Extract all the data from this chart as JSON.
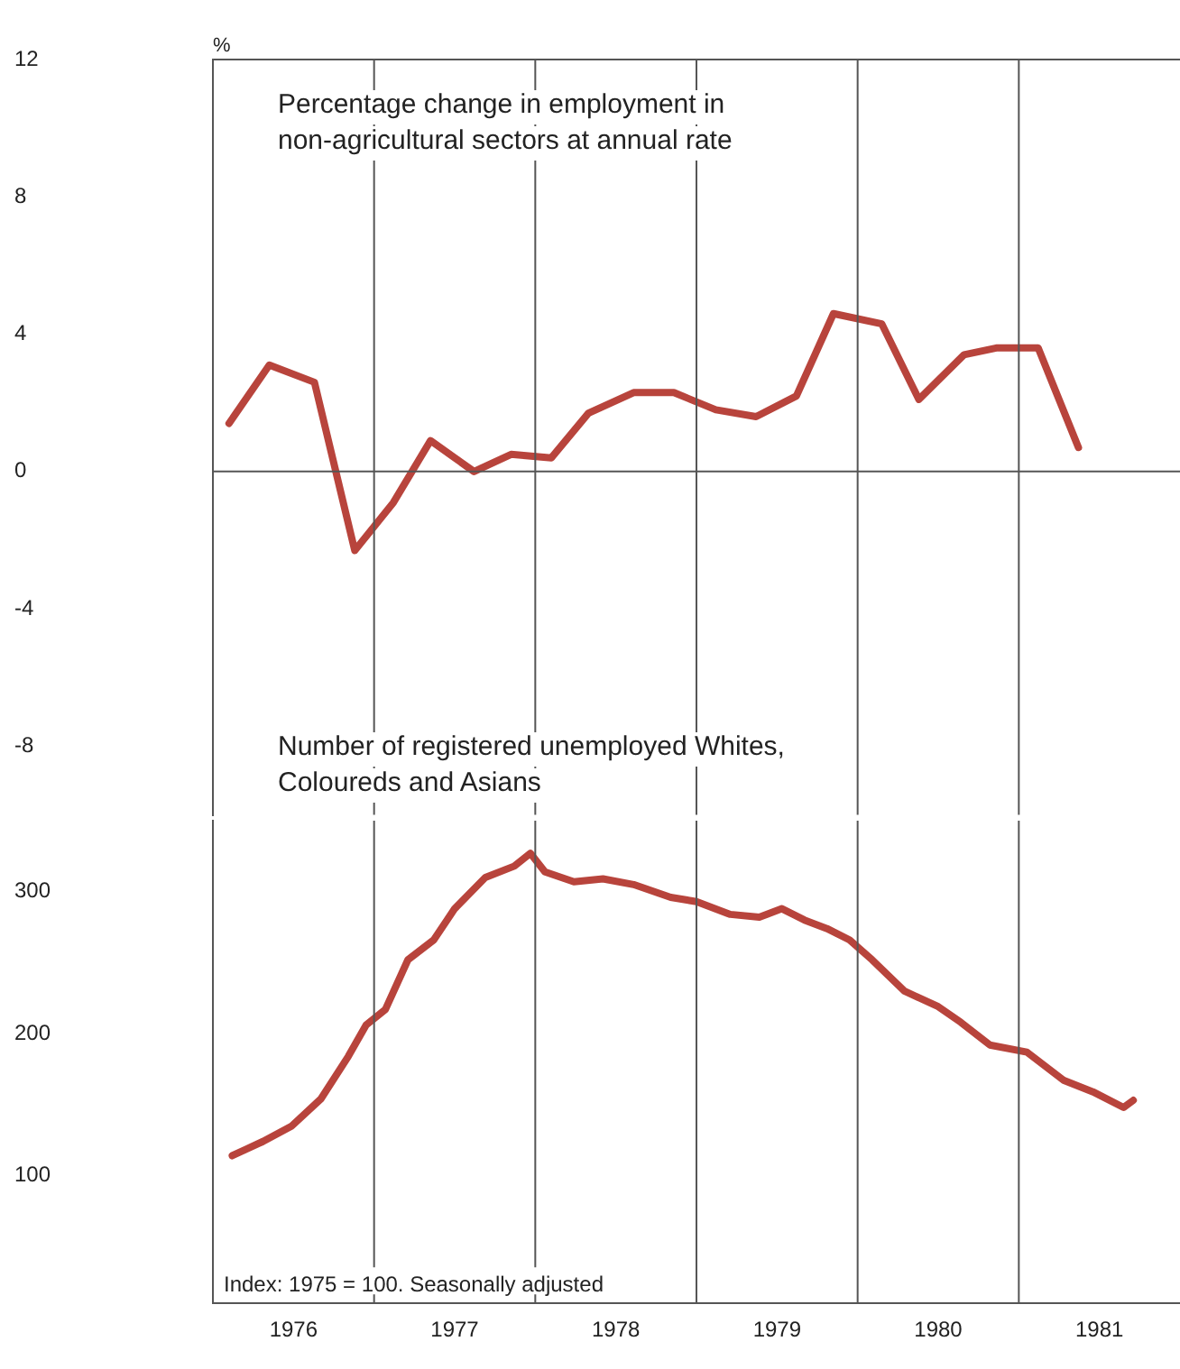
{
  "chart_data": [
    {
      "type": "line",
      "title": "Percentage change in employment in non-agricultural sectors at annual rate",
      "ylabel": "%",
      "color": "#b8443c",
      "x": [
        1976.1,
        1976.35,
        1976.63,
        1976.88,
        1977.12,
        1977.35,
        1977.62,
        1977.85,
        1978.1,
        1978.33,
        1978.61,
        1978.86,
        1979.12,
        1979.37,
        1979.62,
        1979.85,
        1980.15,
        1980.38,
        1980.66,
        1980.86,
        1981.12,
        1981.37
      ],
      "values": [
        1.4,
        3.1,
        2.6,
        -2.3,
        -0.9,
        0.9,
        0.0,
        0.5,
        0.4,
        1.7,
        2.3,
        2.3,
        1.8,
        1.6,
        2.2,
        4.6,
        4.3,
        2.1,
        3.4,
        3.6,
        3.6,
        0.7
      ],
      "xlim": [
        1976,
        1982
      ],
      "ylim": [
        -10,
        12
      ],
      "yticks": [
        12,
        8,
        4,
        0,
        -4,
        -8
      ],
      "tick_labels": "y",
      "ref_lines": [
        {
          "axis": "y",
          "value": 0
        },
        {
          "axis": "x",
          "value": 1977
        },
        {
          "axis": "x",
          "value": 1978
        },
        {
          "axis": "x",
          "value": 1979
        },
        {
          "axis": "x",
          "value": 1980
        },
        {
          "axis": "x",
          "value": 1981
        }
      ]
    },
    {
      "type": "line",
      "title": "Number of registered unemployed Whites, Coloureds and Asians",
      "color": "#b8443c",
      "x": [
        1976.12,
        1976.31,
        1976.49,
        1976.67,
        1976.84,
        1976.95,
        1977.07,
        1977.21,
        1977.37,
        1977.5,
        1977.69,
        1977.87,
        1977.97,
        1978.06,
        1978.24,
        1978.42,
        1978.61,
        1978.84,
        1979.0,
        1979.21,
        1979.39,
        1979.53,
        1979.67,
        1979.81,
        1979.95,
        1980.09,
        1980.29,
        1980.5,
        1980.64,
        1980.82,
        1981.05,
        1981.28,
        1981.46,
        1981.65,
        1981.71
      ],
      "values": [
        114,
        124,
        135,
        154,
        184,
        206,
        217,
        252,
        266,
        288,
        310,
        318,
        327,
        314,
        307,
        309,
        305,
        296,
        293,
        284,
        282,
        288,
        280,
        274,
        266,
        252,
        230,
        219,
        208,
        192,
        187,
        167,
        159,
        148,
        153
      ],
      "xlim": [
        1976,
        1982
      ],
      "xticks": [
        {
          "value": 1976.5,
          "label": "1976"
        },
        {
          "value": 1977.5,
          "label": "1977"
        },
        {
          "value": 1978.5,
          "label": "1978"
        },
        {
          "value": 1979.5,
          "label": "1979"
        },
        {
          "value": 1980.5,
          "label": "1980"
        },
        {
          "value": 1981.5,
          "label": "1981"
        }
      ],
      "ylim": [
        10,
        350
      ],
      "yticks": [
        300,
        200,
        100
      ],
      "ref_lines": [
        {
          "axis": "x",
          "value": 1977
        },
        {
          "axis": "x",
          "value": 1978
        },
        {
          "axis": "x",
          "value": 1979
        },
        {
          "axis": "x",
          "value": 1980
        },
        {
          "axis": "x",
          "value": 1981
        }
      ],
      "annotations": [
        "Index: 1975 = 100. Seasonally adjusted"
      ]
    }
  ]
}
